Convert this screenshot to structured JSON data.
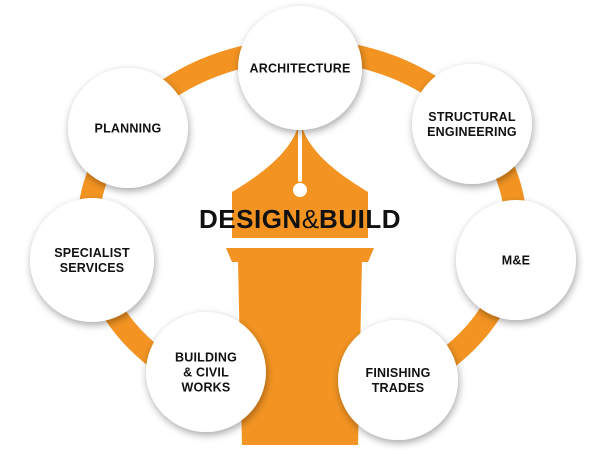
{
  "title": {
    "part1": "DESIGN",
    "ampersand": "&",
    "part2": "BUILD"
  },
  "nodes": [
    {
      "id": "architecture",
      "lines": [
        "ARCHITECTURE"
      ]
    },
    {
      "id": "structural-engineering",
      "lines": [
        "STRUCTURAL",
        "ENGINEERING"
      ]
    },
    {
      "id": "m-and-e",
      "lines": [
        "M&E"
      ]
    },
    {
      "id": "finishing-trades",
      "lines": [
        "FINISHING",
        "TRADES"
      ]
    },
    {
      "id": "building-civil-works",
      "lines": [
        "BUILDING",
        "& CIVIL",
        "WORKS"
      ]
    },
    {
      "id": "specialist-services",
      "lines": [
        "SPECIALIST",
        "SERVICES"
      ]
    },
    {
      "id": "planning",
      "lines": [
        "PLANNING"
      ]
    }
  ],
  "icon": "fountain-pen-nib-icon",
  "colors": {
    "accent": "#F39422",
    "node_fill": "#FFFFFF",
    "text": "#111111"
  }
}
